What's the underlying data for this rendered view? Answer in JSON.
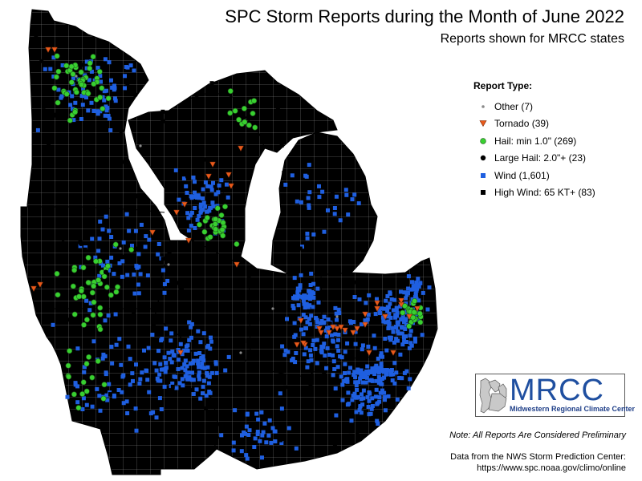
{
  "header": {
    "title": "SPC Storm Reports during the Month of June 2022",
    "subtitle": "Reports shown for MRCC states"
  },
  "legend": {
    "heading": "Report Type:",
    "items": [
      {
        "key": "other",
        "label": "Other (7)",
        "color": "#8a8a8a",
        "shape": "small-dot"
      },
      {
        "key": "tornado",
        "label": "Tornado (39)",
        "color": "#e85a1b",
        "shape": "down-triangle"
      },
      {
        "key": "hail",
        "label": "Hail: min 1.0\" (269)",
        "color": "#38d030",
        "shape": "circle"
      },
      {
        "key": "large-hail",
        "label": "Large Hail: 2.0\"+ (23)",
        "color": "#000000",
        "shape": "circle"
      },
      {
        "key": "wind",
        "label": "Wind (1,601)",
        "color": "#1f5fe0",
        "shape": "square"
      },
      {
        "key": "high-wind",
        "label": "High Wind: 65 KT+ (83)",
        "color": "#000000",
        "shape": "square"
      }
    ]
  },
  "logo": {
    "wordmark": "MRCC",
    "tagline": "Midwestern Regional Climate Center"
  },
  "footer": {
    "note": "Note: All Reports Are Considered Preliminary",
    "source_line1": "Data from the NWS Storm Prediction Center:",
    "source_line2": "https://www.spc.noaa.gov/climo/online"
  },
  "colors": {
    "land": "#e3e3e3",
    "county_lines": "#9a9a9a",
    "state_lines": "#000000",
    "water": "#ffffff"
  },
  "regions": [
    "Minnesota",
    "Wisconsin",
    "Michigan",
    "Iowa",
    "Illinois",
    "Indiana",
    "Ohio",
    "Missouri",
    "Kentucky"
  ]
}
